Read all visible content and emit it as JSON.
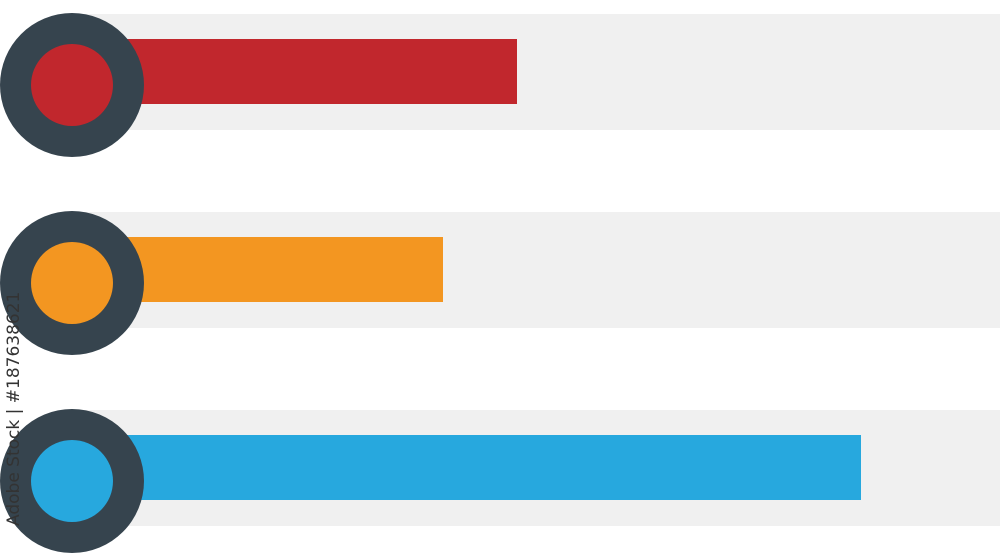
{
  "bars": [
    {
      "color": "#c1272d",
      "value": 0.48
    },
    {
      "color": "#f39621",
      "value": 0.4
    },
    {
      "color": "#27a8de",
      "value": 0.85
    }
  ],
  "ring_color": "#36444e",
  "track_color": "#f0f0f0",
  "watermark": {
    "brand": "Adobe Stock",
    "separator": "|",
    "id": "#187638621"
  }
}
